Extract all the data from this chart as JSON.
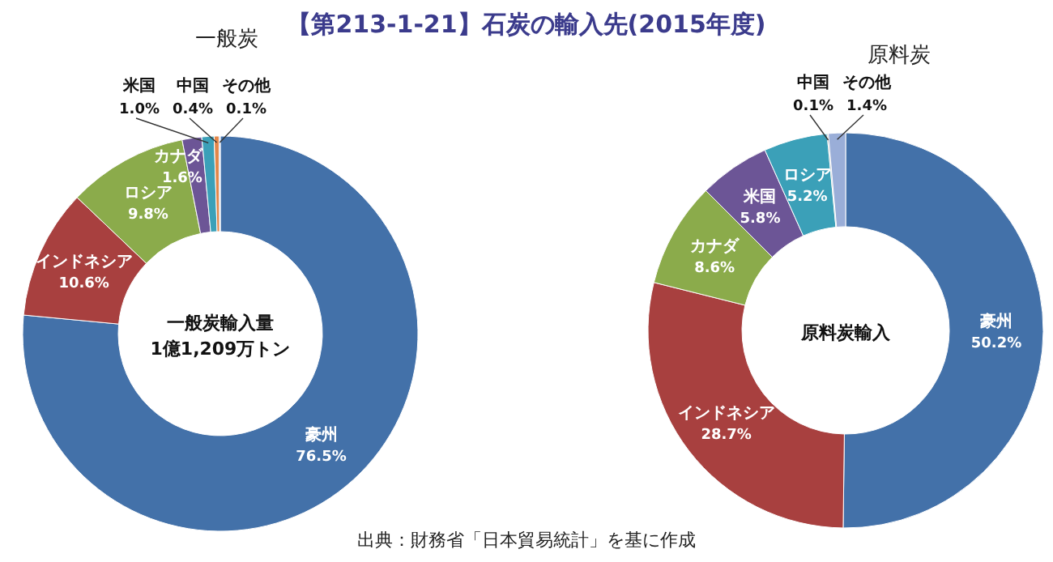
{
  "chart_data": [
    {
      "type": "donut",
      "title": "【第213-1-21】石炭の輸入先(2015年度)",
      "subtitle": "一般炭",
      "categories": [
        "豪州",
        "インドネシア",
        "ロシア",
        "カナダ",
        "米国",
        "中国",
        "その他"
      ],
      "values": [
        76.5,
        10.6,
        9.8,
        1.6,
        1.0,
        0.4,
        0.1
      ],
      "colors": [
        "#4371a9",
        "#a8403f",
        "#8bab4b",
        "#6c5596",
        "#3ba0b8",
        "#e3874a",
        "#9aaed8"
      ],
      "value_labels": [
        "76.5%",
        "10.6%",
        "9.8%",
        "1.6%",
        "1.0%",
        "0.4%",
        "0.1%"
      ],
      "annotations": [
        "一般炭輸入量",
        "1億1,209万トン",
        "出典：財務省「日本貿易統計」を基に作成"
      ]
    },
    {
      "type": "donut",
      "subtitle": "原料炭",
      "categories": [
        "豪州",
        "インドネシア",
        "カナダ",
        "米国",
        "ロシア",
        "中国",
        "その他"
      ],
      "values": [
        50.2,
        28.7,
        8.6,
        5.8,
        5.2,
        0.1,
        1.4
      ],
      "colors": [
        "#4371a9",
        "#a8403f",
        "#8bab4b",
        "#6c5596",
        "#3ba0b8",
        "#8c8c8c",
        "#9aaed8"
      ],
      "value_labels": [
        "50.2%",
        "28.7%",
        "8.6%",
        "5.8%",
        "5.2%",
        "0.1%",
        "1.4%"
      ],
      "annotations": [
        "原料炭輸入"
      ]
    }
  ]
}
